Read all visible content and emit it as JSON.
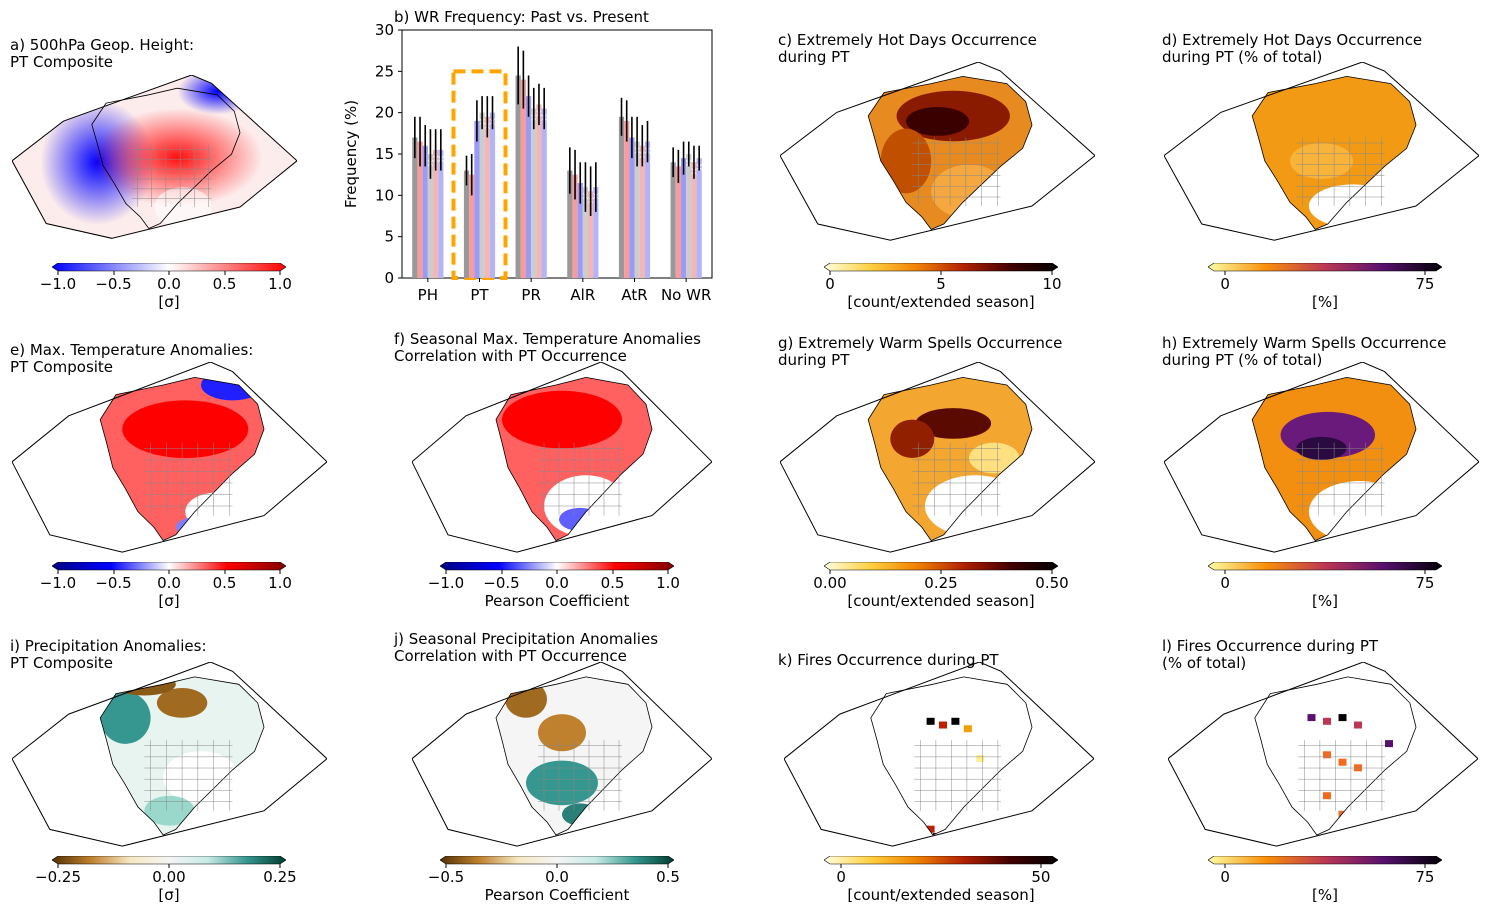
{
  "panels": [
    {
      "id": "a",
      "title": "a) 500hPa Geop. Height:\nPT Composite",
      "cb_ticks": [
        "−1.0",
        "−0.5",
        "0.0",
        "0.5",
        "1.0"
      ],
      "cb_label": "[σ]",
      "cmap": [
        "#0000ff",
        "#ffffff",
        "#ff0000"
      ]
    },
    {
      "id": "c",
      "title": "c) Extremely Hot Days Occurrence\nduring PT",
      "cb_ticks": [
        "0",
        "5",
        "10"
      ],
      "cb_label": "[count/extended season]",
      "cmap": [
        "#ffffe0",
        "#ffd040",
        "#f08000",
        "#b02000",
        "#400000",
        "#000000"
      ]
    },
    {
      "id": "d",
      "title": "d) Extremely Hot Days Occurrence\nduring PT (% of total)",
      "cb_ticks": [
        "0",
        "75"
      ],
      "cb_label": "[%]",
      "cmap": [
        "#fcffa4",
        "#f98e09",
        "#bc3754",
        "#57106e",
        "#000004"
      ]
    },
    {
      "id": "e",
      "title": "e) Max. Temperature Anomalies:\nPT Composite",
      "cb_ticks": [
        "−1.0",
        "−0.5",
        "0.0",
        "0.5",
        "1.0"
      ],
      "cb_label": "[σ]",
      "cmap": [
        "#000080",
        "#0000ff",
        "#ffffff",
        "#ff0000",
        "#800000"
      ]
    },
    {
      "id": "f",
      "title": "f) Seasonal Max. Temperature Anomalies\nCorrelation with PT Occurrence",
      "cb_ticks": [
        "−1.0",
        "−0.5",
        "0.0",
        "0.5",
        "1.0"
      ],
      "cb_label": "Pearson Coefficient",
      "cmap": [
        "#000080",
        "#0000ff",
        "#ffffff",
        "#ff0000",
        "#800000"
      ]
    },
    {
      "id": "g",
      "title": "g) Extremely Warm Spells Occurrence\nduring PT",
      "cb_ticks": [
        "0.00",
        "0.25",
        "0.50"
      ],
      "cb_label": "[count/extended season]",
      "cmap": [
        "#ffffe0",
        "#ffd040",
        "#f08000",
        "#b02000",
        "#400000",
        "#000000"
      ]
    },
    {
      "id": "h",
      "title": "h) Extremely Warm Spells Occurrence\nduring PT (% of total)",
      "cb_ticks": [
        "0",
        "75"
      ],
      "cb_label": "[%]",
      "cmap": [
        "#fcffa4",
        "#f98e09",
        "#bc3754",
        "#57106e",
        "#000004"
      ]
    },
    {
      "id": "i",
      "title": "i) Precipitation Anomalies:\nPT Composite",
      "cb_ticks": [
        "−0.25",
        "0.00",
        "0.25"
      ],
      "cb_label": "[σ]",
      "cmap": [
        "#543005",
        "#bf812d",
        "#f6e8c3",
        "#f5f5f5",
        "#c7eae5",
        "#35978f",
        "#003c30"
      ]
    },
    {
      "id": "j",
      "title": "j) Seasonal Precipitation Anomalies\nCorrelation with PT Occurrence",
      "cb_ticks": [
        "−0.5",
        "0.0",
        "0.5"
      ],
      "cb_label": "Pearson Coefficient",
      "cmap": [
        "#543005",
        "#bf812d",
        "#f6e8c3",
        "#f5f5f5",
        "#c7eae5",
        "#35978f",
        "#003c30"
      ]
    },
    {
      "id": "k",
      "title": "k) Fires Occurrence during PT",
      "cb_ticks": [
        "0",
        "50"
      ],
      "cb_label": "[count/extended season]",
      "cmap": [
        "#ffffe0",
        "#ffd040",
        "#f08000",
        "#b02000",
        "#400000",
        "#000000"
      ]
    },
    {
      "id": "l",
      "title": "l) Fires Occurrence during PT\n(% of total)",
      "cb_ticks": [
        "0",
        "75"
      ],
      "cb_label": "[%]",
      "cmap": [
        "#fcffa4",
        "#f98e09",
        "#bc3754",
        "#57106e",
        "#000004"
      ]
    }
  ],
  "chart_data": {
    "type": "bar",
    "title": "b) WR Frequency: Past vs. Present",
    "xlabel": "",
    "ylabel": "Frequency (%)",
    "ylim": [
      0,
      30
    ],
    "yticks": [
      "0",
      "5",
      "10",
      "15",
      "20",
      "25",
      "30"
    ],
    "categories": [
      "PH",
      "PT",
      "PR",
      "AlR",
      "AtR",
      "No WR"
    ],
    "highlight_category": "PT",
    "highlight_color": "#ffa500",
    "series": [
      {
        "color": "#999999",
        "values": [
          17.0,
          13.0,
          24.5,
          13.0,
          19.5,
          14.0
        ],
        "err": [
          2.5,
          1.8,
          3.5,
          2.8,
          2.3,
          1.8
        ]
      },
      {
        "color": "#f79c9c",
        "values": [
          16.5,
          12.5,
          24.0,
          12.5,
          19.0,
          13.5
        ],
        "err": [
          3.0,
          2.5,
          3.5,
          3.0,
          2.5,
          2.0
        ]
      },
      {
        "color": "#9a9af7",
        "values": [
          16.0,
          19.0,
          22.0,
          11.5,
          17.0,
          14.5
        ],
        "err": [
          2.5,
          2.5,
          2.5,
          2.5,
          2.5,
          2.0
        ]
      },
      {
        "color": "#cccccc",
        "values": [
          15.0,
          20.0,
          20.5,
          11.0,
          16.5,
          15.0
        ],
        "err": [
          3.0,
          2.0,
          2.5,
          3.0,
          3.0,
          1.5
        ]
      },
      {
        "color": "#f2b6b6",
        "values": [
          15.5,
          19.5,
          21.0,
          10.5,
          16.0,
          14.0
        ],
        "err": [
          2.5,
          2.5,
          2.5,
          3.0,
          2.5,
          2.0
        ]
      },
      {
        "color": "#b3b3f7",
        "values": [
          15.5,
          20.0,
          20.5,
          11.0,
          16.5,
          14.5
        ],
        "err": [
          2.5,
          2.0,
          2.5,
          3.0,
          2.5,
          1.5
        ]
      }
    ]
  }
}
